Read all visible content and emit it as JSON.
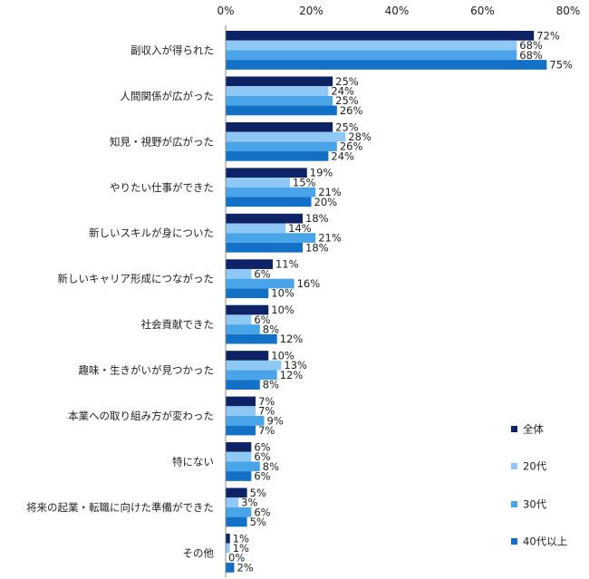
{
  "chart_data": {
    "type": "bar",
    "orientation": "horizontal",
    "title": "",
    "xlabel": "",
    "ylabel": "",
    "xlim": [
      0,
      80
    ],
    "x_ticks": [
      "0%",
      "20%",
      "40%",
      "60%",
      "80%"
    ],
    "grid": false,
    "legend_position": "bottom-right",
    "categories": [
      "副収入が得られた",
      "人間関係が広がった",
      "知見・視野が広がった",
      "やりたい仕事ができた",
      "新しいスキルが身についた",
      "新しいキャリア形成につながった",
      "社会貢献できた",
      "趣味・生きがいが見つかった",
      "本業への取り組み方が変わった",
      "特にない",
      "将来の起業・転職に向けた準備ができた",
      "その他"
    ],
    "series": [
      {
        "name": "全体",
        "color": "#0d2366",
        "values": [
          72,
          25,
          25,
          19,
          18,
          11,
          10,
          10,
          7,
          6,
          5,
          1
        ]
      },
      {
        "name": "20代",
        "color": "#8fc8f5",
        "values": [
          68,
          24,
          28,
          15,
          14,
          6,
          6,
          13,
          7,
          6,
          3,
          1
        ]
      },
      {
        "name": "30代",
        "color": "#4aa5e8",
        "values": [
          68,
          25,
          26,
          21,
          21,
          16,
          8,
          12,
          9,
          8,
          6,
          0
        ]
      },
      {
        "name": "40代以上",
        "color": "#1270c6",
        "values": [
          75,
          26,
          24,
          20,
          18,
          10,
          12,
          8,
          7,
          6,
          5,
          2
        ]
      }
    ],
    "value_suffix": "%"
  }
}
